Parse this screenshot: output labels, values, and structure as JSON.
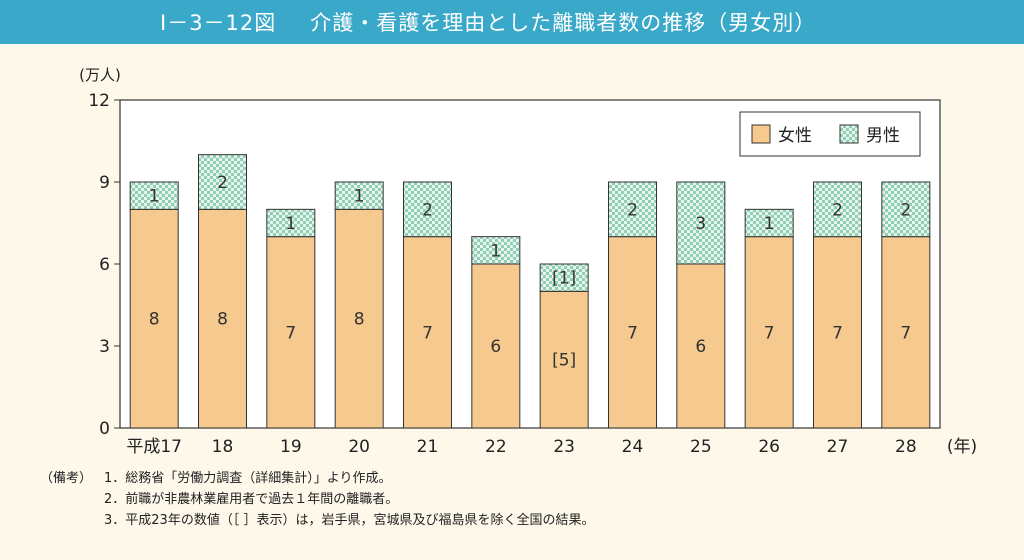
{
  "figure_number": "Ⅰ－3－12図",
  "title": "介護・看護を理由とした離職者数の推移（男女別）",
  "chart_data": {
    "type": "bar",
    "stacked": true,
    "ylabel": "(万人)",
    "xlabel": "(年)",
    "ylim": [
      0,
      12
    ],
    "yticks": [
      0,
      3,
      6,
      9,
      12
    ],
    "categories": [
      "平成17",
      "18",
      "19",
      "20",
      "21",
      "22",
      "23",
      "24",
      "25",
      "26",
      "27",
      "28"
    ],
    "series": [
      {
        "name": "女性",
        "values": [
          8,
          8,
          7,
          8,
          7,
          6,
          5,
          7,
          6,
          7,
          7,
          7
        ],
        "color": "#f6c98f"
      },
      {
        "name": "男性",
        "values": [
          1,
          2,
          1,
          1,
          2,
          1,
          1,
          2,
          3,
          1,
          2,
          2
        ],
        "color": "#cfeadd",
        "pattern": "checker"
      }
    ],
    "value_labels": {
      "女性": [
        "8",
        "8",
        "7",
        "8",
        "7",
        "6",
        "[5]",
        "7",
        "6",
        "7",
        "7",
        "7"
      ],
      "男性": [
        "1",
        "2",
        "1",
        "1",
        "2",
        "1",
        "[1]",
        "2",
        "3",
        "1",
        "2",
        "2"
      ]
    },
    "legend_position": "top-right",
    "grid": false
  },
  "notes": {
    "label": "（備考）",
    "items": [
      "1．総務省「労働力調査（詳細集計）」より作成。",
      "2．前職が非農林業雇用者で過去１年間の離職者。",
      "3．平成23年の数値（［ ］表示）は，岩手県，宮城県及び福島県を除く全国の結果。"
    ]
  }
}
